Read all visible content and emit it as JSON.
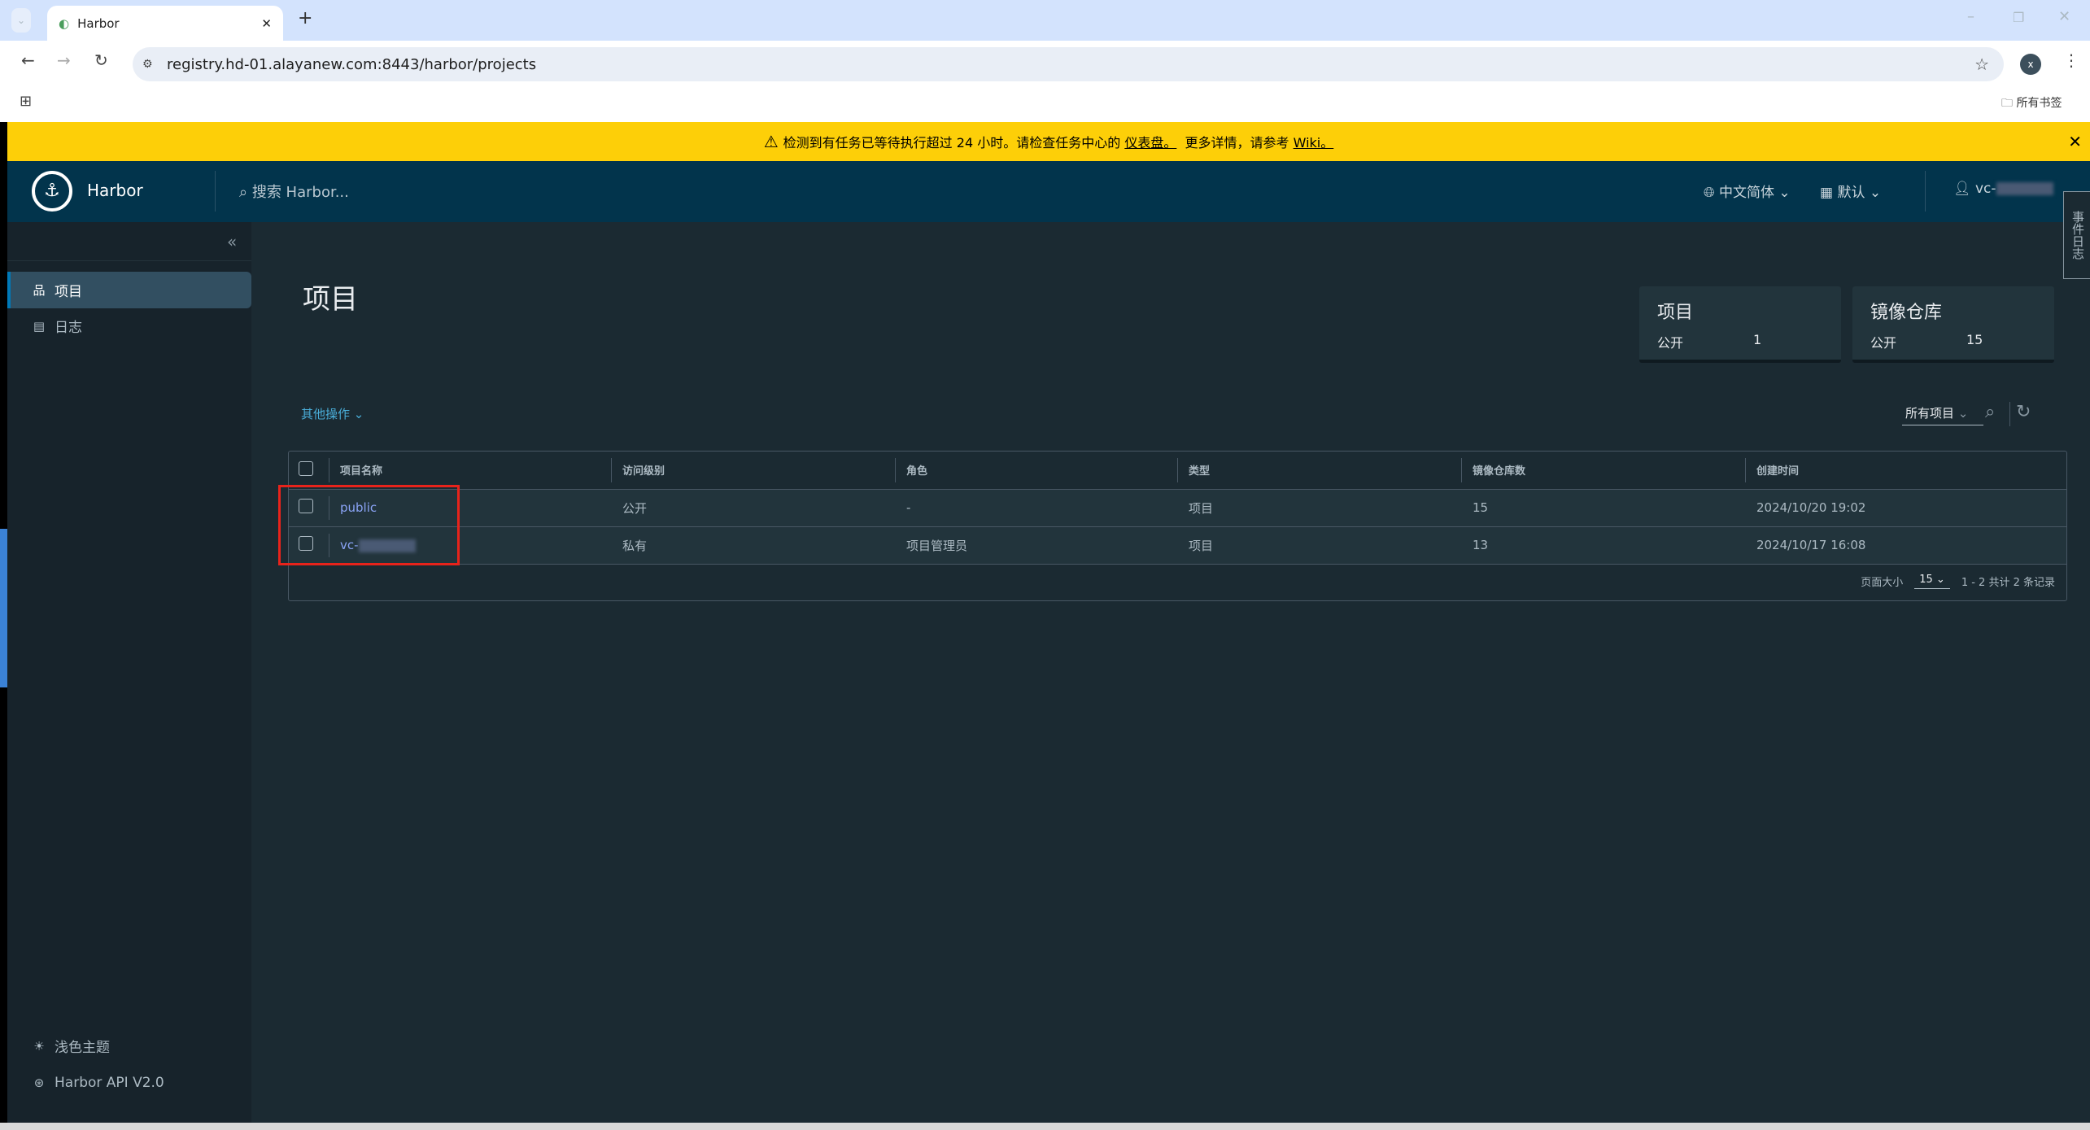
{
  "browser": {
    "tab_title": "Harbor",
    "url": "registry.hd-01.alayanew.com:8443/harbor/projects",
    "bookmarks_label": "所有书签",
    "profile_initial": "x"
  },
  "banner": {
    "text": "检测到有任务已等待执行超过 24 小时。请检查任务中心的",
    "link1": "仪表盘。",
    "middle": "更多详情，请参考",
    "link2": "Wiki。"
  },
  "header": {
    "app_name": "Harbor",
    "search_placeholder": "搜索 Harbor...",
    "language": "中文简体",
    "datetime_format": "默认",
    "user": "vc-"
  },
  "side_tab": "事件日志",
  "sidebar": {
    "items": [
      {
        "label": "项目",
        "active": true
      },
      {
        "label": "日志"
      }
    ],
    "bottom": [
      {
        "label": "浅色主题"
      },
      {
        "label": "Harbor API V2.0"
      }
    ]
  },
  "main": {
    "title": "项目",
    "cards": [
      {
        "title": "项目",
        "label": "公开",
        "value": "1"
      },
      {
        "title": "镜像仓库",
        "label": "公开",
        "value": "15"
      }
    ],
    "actions_label": "其他操作",
    "filter_value": "所有项目",
    "columns": [
      "项目名称",
      "访问级别",
      "角色",
      "类型",
      "镜像仓库数",
      "创建时间"
    ],
    "rows": [
      [
        "public",
        "公开",
        "-",
        "项目",
        "15",
        "2024/10/20 19:02"
      ],
      [
        "vc-",
        "私有",
        "项目管理员",
        "项目",
        "13",
        "2024/10/17 16:08"
      ]
    ],
    "page_size_label": "页面大小",
    "page_size": "15",
    "pagination": "1 - 2 共计 2 条记录"
  },
  "colors": {
    "banner": "#fdcf08",
    "header": "#02344c",
    "highlight_box": "#e8231b"
  }
}
